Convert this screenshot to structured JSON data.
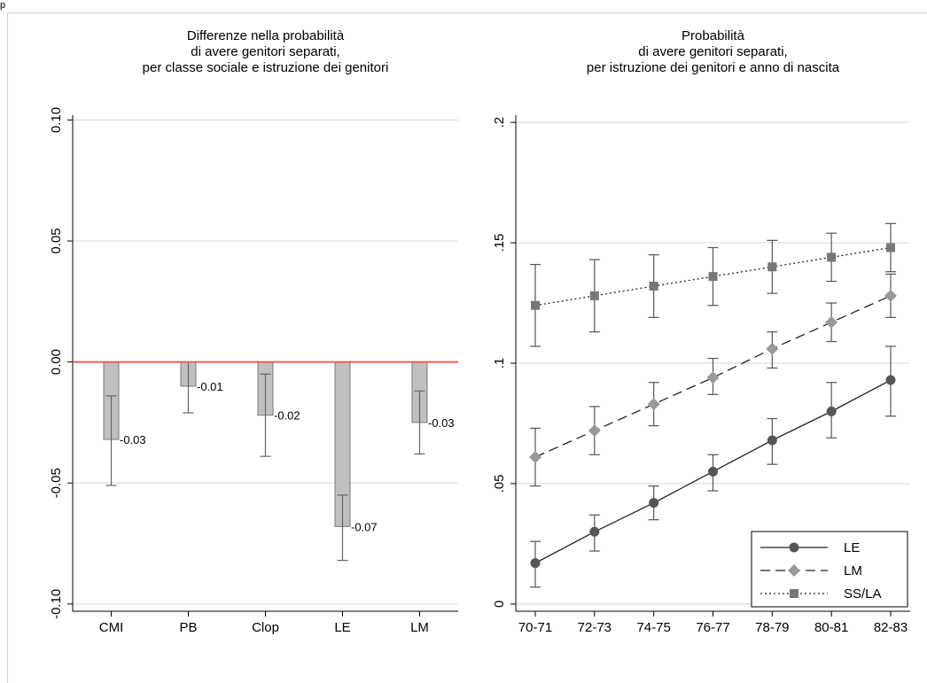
{
  "page_label": "p",
  "chart_data": [
    {
      "type": "bar",
      "title": [
        "Differenze nella probabilità",
        "di avere genitori separati,",
        "per classe sociale e istruzione dei genitori"
      ],
      "categories": [
        "CMI",
        "PB",
        "Clop",
        "LE",
        "LM"
      ],
      "values": [
        -0.032,
        -0.01,
        -0.022,
        -0.068,
        -0.025
      ],
      "ci_low": [
        -0.051,
        -0.021,
        -0.039,
        -0.082,
        -0.038
      ],
      "ci_high": [
        -0.014,
        0.0,
        -0.005,
        -0.055,
        -0.012
      ],
      "data_labels": [
        "-0.03",
        "-0.01",
        "-0.02",
        "-0.07",
        "-0.03"
      ],
      "yticks": [
        -0.1,
        -0.05,
        0.0,
        0.05,
        0.1
      ],
      "ytick_labels": [
        "-0.10",
        "-0.05",
        "0.00",
        "0.05",
        "0.10"
      ],
      "ylim": [
        -0.103,
        0.102
      ],
      "reference_line": 0,
      "grid": true,
      "colors": {
        "bar": "#c0c0c0",
        "bar_edge": "#7a7a7a",
        "ci": "#666666",
        "reference": "#e8604f",
        "grid": "#dcdcdc"
      }
    },
    {
      "type": "line",
      "title": [
        "Probabilità",
        "di avere genitori separati,",
        "per istruzione dei genitori e anno di nascita"
      ],
      "categories": [
        "70-71",
        "72-73",
        "74-75",
        "76-77",
        "78-79",
        "80-81",
        "82-83"
      ],
      "series": [
        {
          "name": "LE",
          "marker": "circle",
          "dash": "solid",
          "color": "#555555",
          "values": [
            0.017,
            0.03,
            0.042,
            0.055,
            0.068,
            0.08,
            0.093
          ],
          "ci_low": [
            0.007,
            0.022,
            0.035,
            0.047,
            0.058,
            0.069,
            0.078
          ],
          "ci_high": [
            0.026,
            0.037,
            0.049,
            0.062,
            0.077,
            0.092,
            0.107
          ]
        },
        {
          "name": "LM",
          "marker": "diamond",
          "dash": "dashed",
          "color": "#999999",
          "values": [
            0.061,
            0.072,
            0.083,
            0.094,
            0.106,
            0.117,
            0.128
          ],
          "ci_low": [
            0.049,
            0.062,
            0.074,
            0.087,
            0.098,
            0.109,
            0.119
          ],
          "ci_high": [
            0.073,
            0.082,
            0.092,
            0.102,
            0.113,
            0.125,
            0.137
          ]
        },
        {
          "name": "SS/LA",
          "marker": "square",
          "dash": "dotted",
          "color": "#777777",
          "values": [
            0.124,
            0.128,
            0.132,
            0.136,
            0.14,
            0.144,
            0.148
          ],
          "ci_low": [
            0.107,
            0.113,
            0.119,
            0.124,
            0.129,
            0.134,
            0.138
          ],
          "ci_high": [
            0.141,
            0.143,
            0.145,
            0.148,
            0.151,
            0.154,
            0.158
          ]
        }
      ],
      "yticks": [
        0,
        0.05,
        0.1,
        0.15,
        0.2
      ],
      "ytick_labels": [
        "0",
        ".05",
        ".1",
        ".15",
        ".2"
      ],
      "ylim": [
        -0.003,
        0.203
      ],
      "grid": true,
      "legend": "bottom-right",
      "colors": {
        "grid": "#dcdcdc",
        "ci": "#555555"
      }
    }
  ]
}
